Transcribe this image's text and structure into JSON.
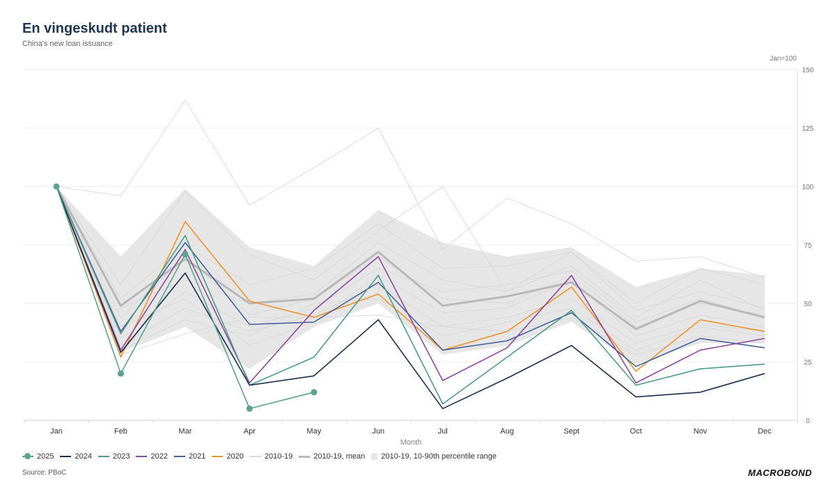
{
  "header": {
    "title": "En vingeskudt patient",
    "subtitle": "China's new loan issuance",
    "unit_label": "Jan=100"
  },
  "footer": {
    "source": "Source: PBoC",
    "logo": "MACROBOND"
  },
  "chart_data": {
    "type": "line",
    "title": "En vingeskudt patient",
    "subtitle": "China's new loan issuance",
    "xlabel": "Month",
    "ylabel": "Jan=100",
    "categories": [
      "Jan",
      "Feb",
      "Mar",
      "Apr",
      "May",
      "Jun",
      "Jul",
      "Aug",
      "Sept",
      "Oct",
      "Nov",
      "Dec"
    ],
    "ylim": [
      0,
      150
    ],
    "yticks": [
      0,
      25,
      50,
      75,
      100,
      125,
      150
    ],
    "grid": true,
    "legend_position": "bottom",
    "band": {
      "name": "2010-19, 10-90th percentile range",
      "color": "#e6e6e6",
      "upper": [
        100,
        70,
        99,
        74,
        66,
        90,
        76,
        70,
        74,
        57,
        65,
        62
      ],
      "lower": [
        100,
        29,
        40,
        22,
        40,
        50,
        28,
        32,
        42,
        24,
        33,
        33
      ]
    },
    "background_series": {
      "name": "2010-19",
      "color": "#d6d6d6",
      "lines": [
        [
          100,
          96,
          137,
          92,
          108,
          125,
          73,
          95,
          84,
          68,
          70,
          61
        ],
        [
          100,
          58,
          98,
          71,
          60,
          81,
          100,
          55,
          72,
          50,
          65,
          58
        ],
        [
          100,
          52,
          75,
          58,
          65,
          84,
          65,
          66,
          72,
          47,
          55,
          48
        ],
        [
          100,
          48,
          60,
          50,
          54,
          76,
          60,
          55,
          66,
          44,
          60,
          47
        ],
        [
          100,
          44,
          70,
          45,
          52,
          70,
          52,
          50,
          62,
          40,
          50,
          45
        ],
        [
          100,
          40,
          52,
          32,
          42,
          62,
          46,
          48,
          60,
          36,
          45,
          40
        ],
        [
          100,
          35,
          55,
          40,
          48,
          65,
          55,
          58,
          64,
          42,
          52,
          44
        ],
        [
          100,
          32,
          48,
          38,
          45,
          58,
          40,
          44,
          52,
          33,
          41,
          38
        ],
        [
          100,
          30,
          43,
          36,
          50,
          52,
          36,
          42,
          48,
          30,
          40,
          36
        ],
        [
          100,
          28,
          37,
          44,
          44,
          45,
          40,
          38,
          44,
          28,
          36,
          33
        ]
      ]
    },
    "series": [
      {
        "name": "2010-19, mean",
        "color": "#b8b8b8",
        "width": 3,
        "values": [
          100,
          49,
          69,
          50,
          52,
          72,
          49,
          53,
          59,
          39,
          51,
          44
        ]
      },
      {
        "name": "2020",
        "color": "#f0922b",
        "width": 1.6,
        "values": [
          100,
          27,
          85,
          51,
          44,
          54,
          30,
          38,
          57,
          21,
          43,
          38
        ]
      },
      {
        "name": "2021",
        "color": "#46609b",
        "width": 1.6,
        "values": [
          100,
          38,
          76,
          41,
          42,
          59,
          30,
          34,
          46,
          23,
          35,
          31
        ]
      },
      {
        "name": "2022",
        "color": "#8c4a9e",
        "width": 1.6,
        "values": [
          100,
          30,
          73,
          16,
          47,
          70,
          17,
          31,
          62,
          16,
          30,
          35
        ]
      },
      {
        "name": "2023",
        "color": "#4e9c87",
        "width": 1.6,
        "values": [
          100,
          37,
          79,
          15,
          27,
          62,
          7,
          27,
          47,
          15,
          22,
          24
        ]
      },
      {
        "name": "2024",
        "color": "#1b2f52",
        "width": 1.6,
        "values": [
          100,
          29,
          63,
          15,
          19,
          43,
          5,
          18,
          32,
          10,
          12,
          20
        ]
      },
      {
        "name": "2025",
        "color": "#5ca38e",
        "width": 1.6,
        "markers": true,
        "values": [
          100,
          20,
          71,
          5,
          12,
          null,
          null,
          null,
          null,
          null,
          null,
          null
        ]
      }
    ]
  },
  "legend": [
    {
      "label": "2025",
      "color": "#5ca38e",
      "kind": "marker"
    },
    {
      "label": "2024",
      "color": "#1b2f52",
      "kind": "line"
    },
    {
      "label": "2023",
      "color": "#4e9c87",
      "kind": "line"
    },
    {
      "label": "2022",
      "color": "#8c4a9e",
      "kind": "line"
    },
    {
      "label": "2021",
      "color": "#46609b",
      "kind": "line"
    },
    {
      "label": "2020",
      "color": "#f0922b",
      "kind": "line"
    },
    {
      "label": "2010-19",
      "color": "#d6d6d6",
      "kind": "line"
    },
    {
      "label": "2010-19, mean",
      "color": "#b8b8b8",
      "kind": "thick"
    },
    {
      "label": "2010-19, 10-90th percentile range",
      "color": "#e6e6e6",
      "kind": "area"
    }
  ]
}
